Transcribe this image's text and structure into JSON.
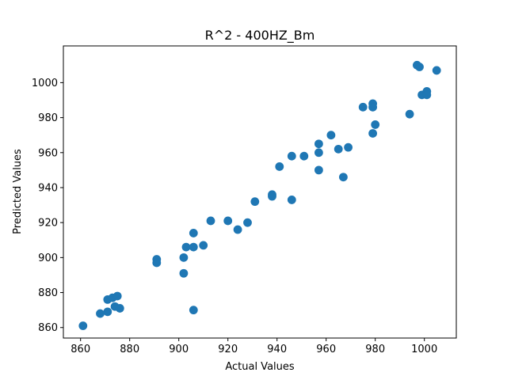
{
  "chart_data": {
    "type": "scatter",
    "title": "R^2 - 400HZ_Bm",
    "xlabel": "Actual Values",
    "ylabel": "Predicted Values",
    "xlim": [
      853,
      1013
    ],
    "ylim": [
      854,
      1021
    ],
    "xticks": [
      860,
      880,
      900,
      920,
      940,
      960,
      980,
      1000
    ],
    "yticks": [
      860,
      880,
      900,
      920,
      940,
      960,
      980,
      1000
    ],
    "grid": false,
    "marker_color": "#1f77b4",
    "points": [
      [
        861,
        861
      ],
      [
        868,
        868
      ],
      [
        871,
        869
      ],
      [
        871,
        876
      ],
      [
        873,
        877
      ],
      [
        875,
        878
      ],
      [
        874,
        872
      ],
      [
        876,
        871
      ],
      [
        891,
        899
      ],
      [
        891,
        897
      ],
      [
        902,
        891
      ],
      [
        902,
        900
      ],
      [
        903,
        906
      ],
      [
        906,
        914
      ],
      [
        906,
        906
      ],
      [
        906,
        870
      ],
      [
        910,
        907
      ],
      [
        913,
        921
      ],
      [
        920,
        921
      ],
      [
        924,
        916
      ],
      [
        928,
        920
      ],
      [
        931,
        932
      ],
      [
        938,
        936
      ],
      [
        938,
        935
      ],
      [
        941,
        952
      ],
      [
        946,
        958
      ],
      [
        946,
        933
      ],
      [
        951,
        958
      ],
      [
        957,
        965
      ],
      [
        957,
        960
      ],
      [
        957,
        950
      ],
      [
        962,
        970
      ],
      [
        965,
        962
      ],
      [
        967,
        946
      ],
      [
        969,
        963
      ],
      [
        975,
        986
      ],
      [
        979,
        988
      ],
      [
        979,
        986
      ],
      [
        979,
        971
      ],
      [
        980,
        976
      ],
      [
        994,
        982
      ],
      [
        997,
        1010
      ],
      [
        998,
        1009
      ],
      [
        999,
        993
      ],
      [
        1001,
        995
      ],
      [
        1001,
        993
      ],
      [
        1005,
        1007
      ]
    ]
  }
}
